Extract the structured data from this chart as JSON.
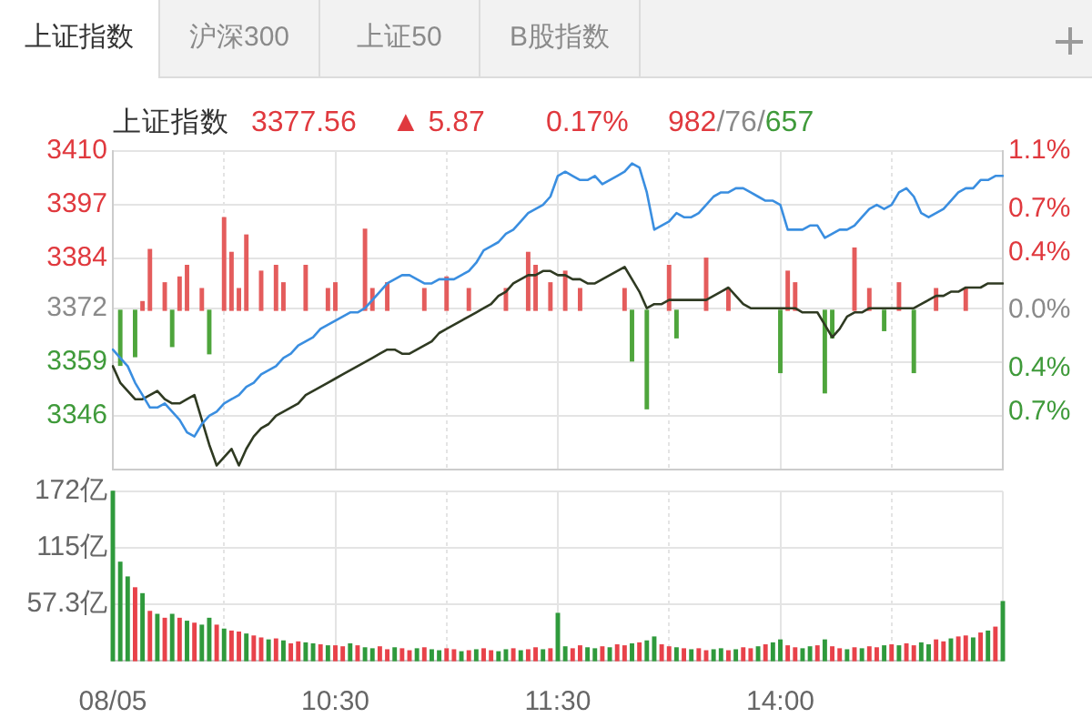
{
  "chart_data": [
    {
      "type": "line",
      "title": "上证指数",
      "annotations": [
        "上证指数",
        "沪深300",
        "上证50",
        "B股指数",
        "3377.56",
        "▲ 5.87",
        "0.17%",
        "982/76/657"
      ],
      "categories": [
        null,
        null,
        null,
        null,
        null,
        null,
        null,
        null,
        null,
        null,
        null,
        null,
        null,
        null,
        null,
        null,
        null,
        null,
        null,
        null,
        null,
        null,
        null,
        null,
        null,
        null,
        null,
        null,
        null,
        null,
        null,
        null,
        null,
        null,
        null,
        null,
        null,
        null,
        null,
        null,
        null,
        null,
        null,
        null,
        null,
        null,
        null,
        null,
        null,
        null,
        null,
        null,
        null,
        null,
        null,
        null,
        null,
        null,
        null,
        null,
        null,
        null,
        null,
        null,
        null,
        null,
        null,
        null,
        null,
        null,
        null,
        null,
        null,
        null,
        null,
        null,
        null,
        null,
        null,
        null,
        null,
        null,
        null,
        null,
        null,
        null,
        null,
        null,
        null,
        null,
        null,
        null,
        null,
        null,
        null,
        null,
        null,
        null,
        null,
        null,
        null,
        null,
        null,
        null,
        null,
        null,
        null,
        null,
        null,
        null,
        null,
        null,
        null,
        null,
        null,
        null,
        null,
        null,
        null,
        null,
        null
      ],
      "tick_labels": "y",
      "ylim": [
        3333,
        3410
      ],
      "yticks": [
        3410,
        3397,
        3384,
        3372,
        3359,
        3346
      ],
      "y2lim": [
        -1.1,
        1.1
      ],
      "y2ticks": [
        {
          "value": 1.1,
          "label": "1.1%"
        },
        {
          "value": 0.7,
          "label": "0.7%"
        },
        {
          "value": 0.4,
          "label": "0.4%"
        },
        {
          "value": 0,
          "label": "0.0%"
        },
        {
          "value": -0.4,
          "label": "0.4%"
        },
        {
          "value": -0.7,
          "label": "0.7%"
        }
      ],
      "grid": true,
      "series": [
        {
          "color": "#3a8ee0",
          "values": [
            3362,
            3360,
            3358,
            3354,
            3351,
            3348,
            3348,
            3349,
            3347,
            3345,
            3342,
            3341,
            3344,
            3346,
            3347,
            3349,
            3350,
            3351,
            3353,
            3354,
            3356,
            3357,
            3358,
            3360,
            3361,
            3363,
            3364,
            3365,
            3367,
            3368,
            3369,
            3370,
            3371,
            3371,
            3372,
            3374,
            3376,
            3378,
            3379,
            3380,
            3380,
            3379,
            3378,
            3378,
            3379,
            3379,
            3379,
            3380,
            3381,
            3383,
            3386,
            3387,
            3388,
            3390,
            3391,
            3393,
            3395,
            3396,
            3397,
            3399,
            3404,
            3405,
            3404,
            3403,
            3403,
            3404,
            3402,
            3403,
            3404,
            3405,
            3407,
            3406,
            3400,
            3391,
            3392,
            3393,
            3395,
            3394,
            3394,
            3395,
            3397,
            3399,
            3400,
            3400,
            3401,
            3401,
            3400,
            3399,
            3398,
            3398,
            3397,
            3391,
            3391,
            3391,
            3392,
            3392,
            3389,
            3390,
            3391,
            3391,
            3392,
            3394,
            3396,
            3397,
            3396,
            3397,
            3400,
            3401,
            3399,
            3395,
            3394,
            3395,
            3396,
            3398,
            3400,
            3401,
            3401,
            3403,
            3403,
            3404,
            3404
          ]
        },
        {
          "color": "#2f3a22",
          "values": [
            3358,
            3354,
            3352,
            3350,
            3350,
            3351,
            3352,
            3350,
            3349,
            3349,
            3350,
            3351,
            3345,
            3339,
            3334,
            3336,
            3338,
            3334,
            3338,
            3341,
            3343,
            3344,
            3346,
            3347,
            3348,
            3349,
            3351,
            3352,
            3353,
            3354,
            3355,
            3356,
            3357,
            3358,
            3359,
            3360,
            3361,
            3362,
            3362,
            3361,
            3361,
            3362,
            3363,
            3364,
            3366,
            3367,
            3368,
            3369,
            3370,
            3371,
            3372,
            3373,
            3375,
            3376,
            3378,
            3379,
            3380,
            3380,
            3381,
            3381,
            3380,
            3380,
            3379,
            3379,
            3378,
            3378,
            3379,
            3380,
            3381,
            3382,
            3379,
            3376,
            3372,
            3373,
            3373,
            3374,
            3374,
            3374,
            3374,
            3374,
            3374,
            3375,
            3376,
            3377,
            3375,
            3373,
            3372,
            3372,
            3372,
            3372,
            3372,
            3372,
            3372,
            3371,
            3371,
            3371,
            3368,
            3365,
            3367,
            3370,
            3371,
            3371,
            3372,
            3372,
            3372,
            3372,
            3372,
            3372,
            3372,
            3373,
            3374,
            3375,
            3375,
            3376,
            3376,
            3377,
            3377,
            3377,
            3378,
            3378,
            3378
          ]
        },
        {
          "type": "bar",
          "axis": "y2",
          "color": "#e45c5c",
          "values": [
            null,
            null,
            null,
            null,
            0.06,
            0.42,
            null,
            0.19,
            null,
            0.23,
            0.31,
            null,
            0.15,
            null,
            null,
            0.64,
            0.4,
            0.15,
            0.52,
            null,
            0.27,
            null,
            0.31,
            0.19,
            null,
            null,
            0.31,
            null,
            null,
            0.15,
            0.19,
            null,
            null,
            null,
            0.56,
            0.15,
            null,
            0.19,
            null,
            null,
            null,
            null,
            0.15,
            null,
            null,
            0.23,
            null,
            null,
            0.15,
            null,
            null,
            null,
            null,
            0.15,
            null,
            null,
            0.4,
            0.31,
            null,
            0.19,
            null,
            0.27,
            null,
            0.15,
            null,
            null,
            null,
            null,
            null,
            0.15,
            null,
            null,
            null,
            null,
            null,
            0.31,
            null,
            null,
            null,
            null,
            0.36,
            null,
            null,
            0.15,
            null,
            null,
            null,
            null,
            null,
            null,
            null,
            0.27,
            0.19,
            null,
            null,
            null,
            null,
            null,
            null,
            null,
            0.43,
            null,
            0.15,
            null,
            null,
            null,
            0.19,
            null,
            null,
            null,
            null,
            0.15,
            null,
            null,
            null,
            0.15,
            null,
            null,
            null,
            null,
            null
          ]
        },
        {
          "type": "bar",
          "axis": "y2",
          "color": "#4ea53c",
          "values": [
            null,
            -0.38,
            null,
            -0.32,
            null,
            null,
            null,
            null,
            -0.25,
            null,
            null,
            null,
            null,
            -0.3,
            null,
            null,
            null,
            null,
            null,
            null,
            null,
            null,
            null,
            null,
            null,
            null,
            null,
            null,
            null,
            null,
            null,
            null,
            null,
            null,
            null,
            null,
            null,
            null,
            null,
            null,
            null,
            null,
            null,
            null,
            null,
            null,
            null,
            null,
            null,
            null,
            null,
            null,
            null,
            null,
            null,
            null,
            null,
            null,
            null,
            null,
            null,
            null,
            null,
            null,
            null,
            null,
            null,
            null,
            null,
            null,
            -0.35,
            null,
            -0.68,
            null,
            null,
            null,
            -0.19,
            null,
            null,
            null,
            null,
            null,
            null,
            null,
            null,
            null,
            null,
            null,
            null,
            null,
            -0.43,
            null,
            null,
            null,
            null,
            null,
            -0.57,
            -0.19,
            null,
            null,
            null,
            null,
            null,
            null,
            -0.14,
            null,
            null,
            null,
            -0.43,
            null,
            null,
            null,
            null,
            null,
            null,
            null,
            null,
            null,
            null,
            null,
            null
          ]
        }
      ]
    },
    {
      "type": "bar",
      "categories": [
        "08/05",
        null,
        null,
        null,
        null,
        null,
        null,
        null,
        null,
        null,
        null,
        null,
        null,
        null,
        null,
        null,
        null,
        null,
        null,
        null,
        null,
        null,
        null,
        null,
        null,
        null,
        null,
        null,
        null,
        null,
        "10:30",
        null,
        null,
        null,
        null,
        null,
        null,
        null,
        null,
        null,
        null,
        null,
        null,
        null,
        null,
        null,
        null,
        null,
        null,
        null,
        null,
        null,
        null,
        null,
        null,
        null,
        null,
        null,
        null,
        null,
        "11:30",
        null,
        null,
        null,
        null,
        null,
        null,
        null,
        null,
        null,
        null,
        null,
        null,
        null,
        null,
        null,
        null,
        null,
        null,
        null,
        null,
        null,
        null,
        null,
        null,
        null,
        null,
        null,
        null,
        null,
        "14:00",
        null,
        null,
        null,
        null,
        null,
        null,
        null,
        null,
        null,
        null,
        null,
        null,
        null,
        null,
        null,
        null,
        null,
        null,
        null,
        null,
        null,
        null,
        null,
        null,
        null,
        null,
        null,
        null,
        null,
        null
      ],
      "ylim": [
        0,
        172
      ],
      "yticks": [
        {
          "value": 57.3,
          "label": "57.3亿"
        },
        {
          "value": 115,
          "label": "115亿"
        },
        {
          "value": 172,
          "label": "172亿"
        }
      ],
      "grid": true,
      "values": [
        172,
        100,
        85,
        74,
        68,
        50,
        47,
        43,
        47,
        43,
        40,
        38,
        36,
        43,
        36,
        32,
        30,
        29,
        27,
        25,
        23,
        21,
        22,
        20,
        17,
        19,
        18,
        17,
        16,
        15,
        15,
        14,
        17,
        15,
        13,
        12,
        14,
        11,
        13,
        12,
        10,
        12,
        13,
        11,
        10,
        12,
        11,
        9,
        10,
        11,
        12,
        10,
        9,
        11,
        12,
        10,
        11,
        13,
        11,
        12,
        48,
        14,
        12,
        15,
        13,
        12,
        14,
        13,
        16,
        15,
        17,
        18,
        20,
        24,
        16,
        14,
        13,
        12,
        11,
        12,
        10,
        11,
        12,
        10,
        11,
        13,
        12,
        14,
        16,
        18,
        21,
        15,
        13,
        12,
        14,
        15,
        21,
        14,
        12,
        11,
        13,
        12,
        14,
        13,
        15,
        16,
        15,
        17,
        15,
        18,
        16,
        21,
        19,
        22,
        24,
        25,
        23,
        28,
        30,
        34,
        60
      ],
      "colors": [
        "#2f9a3c",
        "#2f9a3c",
        "#2f9a3c",
        "#e8424a",
        "#2f9a3c",
        "#e8424a",
        "#2f9a3c",
        "#e8424a",
        "#2f9a3c",
        "#e8424a",
        "#2f9a3c",
        "#e8424a",
        "#2f9a3c",
        "#2f9a3c",
        "#e8424a",
        "#2f9a3c",
        "#e8424a",
        "#e8424a",
        "#2f9a3c",
        "#e8424a",
        "#e8424a",
        "#2f9a3c",
        "#e8424a",
        "#2f9a3c",
        "#e8424a",
        "#e8424a",
        "#2f9a3c",
        "#2f9a3c",
        "#e8424a",
        "#2f9a3c",
        "#e8424a",
        "#e8424a",
        "#2f9a3c",
        "#e8424a",
        "#2f9a3c",
        "#2f9a3c",
        "#e8424a",
        "#e8424a",
        "#2f9a3c",
        "#e8424a",
        "#e8424a",
        "#2f9a3c",
        "#e8424a",
        "#2f9a3c",
        "#2f9a3c",
        "#e8424a",
        "#e8424a",
        "#2f9a3c",
        "#e8424a",
        "#2f9a3c",
        "#e8424a",
        "#e8424a",
        "#2f9a3c",
        "#2f9a3c",
        "#e8424a",
        "#2f9a3c",
        "#e8424a",
        "#e8424a",
        "#2f9a3c",
        "#e8424a",
        "#2f9a3c",
        "#2f9a3c",
        "#e8424a",
        "#e8424a",
        "#2f9a3c",
        "#2f9a3c",
        "#e8424a",
        "#2f9a3c",
        "#e8424a",
        "#e8424a",
        "#2f9a3c",
        "#e8424a",
        "#2f9a3c",
        "#2f9a3c",
        "#e8424a",
        "#e8424a",
        "#2f9a3c",
        "#e8424a",
        "#2f9a3c",
        "#e8424a",
        "#e8424a",
        "#2f9a3c",
        "#2f9a3c",
        "#e8424a",
        "#2f9a3c",
        "#e8424a",
        "#e8424a",
        "#2f9a3c",
        "#e8424a",
        "#2f9a3c",
        "#2f9a3c",
        "#e8424a",
        "#e8424a",
        "#2f9a3c",
        "#2f9a3c",
        "#e8424a",
        "#2f9a3c",
        "#e8424a",
        "#e8424a",
        "#2f9a3c",
        "#e8424a",
        "#2f9a3c",
        "#e8424a",
        "#e8424a",
        "#2f9a3c",
        "#e8424a",
        "#2f9a3c",
        "#e8424a",
        "#e8424a",
        "#2f9a3c",
        "#2f9a3c",
        "#e8424a",
        "#e8424a",
        "#2f9a3c",
        "#e8424a",
        "#e8424a",
        "#2f9a3c",
        "#e8424a",
        "#2f9a3c",
        "#e8424a",
        "#2f9a3c"
      ]
    }
  ]
}
